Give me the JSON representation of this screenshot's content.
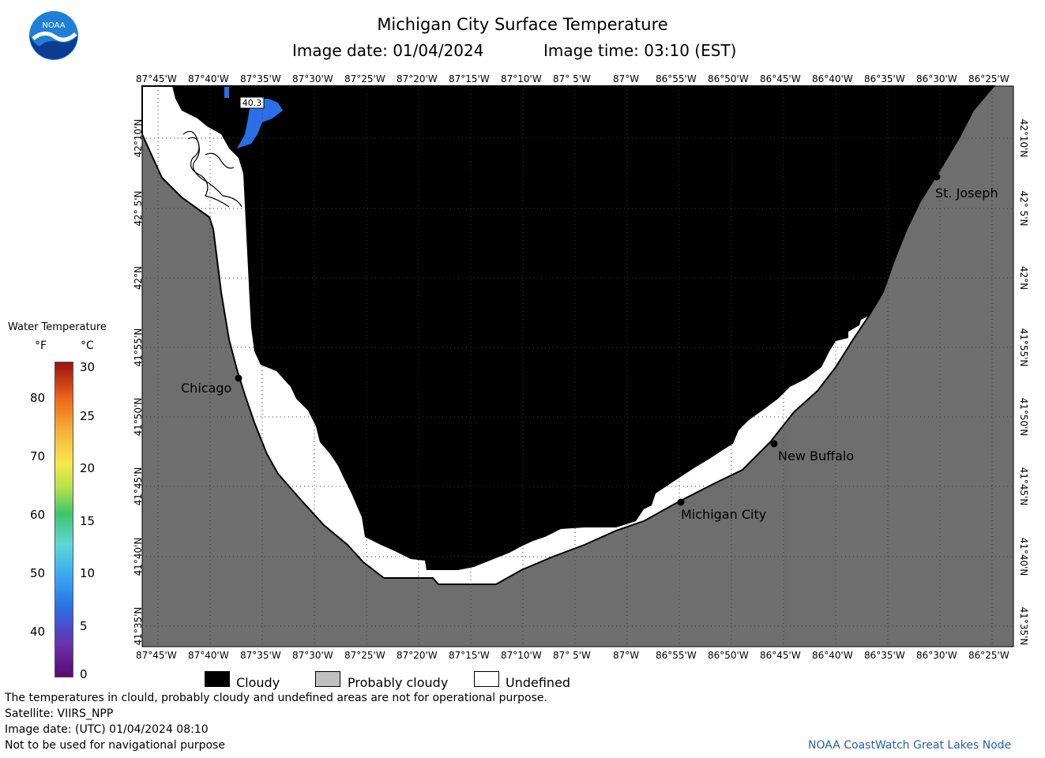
{
  "title": "Michigan City Surface Temperature",
  "image_date_line": "Image date: 01/04/2024",
  "image_time_line": "Image time: 03:10 (EST)",
  "logo_text": "NOAA",
  "lon_labels": [
    "87°45'W",
    "87°40'W",
    "87°35'W",
    "87°30'W",
    "87°25'W",
    "87°20'W",
    "87°15'W",
    "87°10'W",
    "87° 5'W",
    "87°W",
    "86°55'W",
    "86°50'W",
    "86°45'W",
    "86°40'W",
    "86°35'W",
    "86°30'W",
    "86°25'W"
  ],
  "lat_labels": [
    "42°10'N",
    "42° 5'N",
    "42°N",
    "41°55'N",
    "41°50'N",
    "41°45'N",
    "41°40'N",
    "41°35'N"
  ],
  "cities": [
    {
      "name": "Chicago"
    },
    {
      "name": "St. Joseph"
    },
    {
      "name": "New Buffalo"
    },
    {
      "name": "Michigan City"
    }
  ],
  "temp_label": "40.3",
  "colorbar": {
    "title": "Water Temperature",
    "unit_f": "°F",
    "unit_c": "°C",
    "f_ticks": [
      "80",
      "70",
      "60",
      "50",
      "40"
    ],
    "c_ticks": [
      "30",
      "25",
      "20",
      "15",
      "10",
      "5",
      "0"
    ]
  },
  "legend": {
    "cloudy": "Cloudy",
    "probably_cloudy": "Probably cloudy",
    "undefined": "Undefined"
  },
  "colors": {
    "land": "#6e6e6e",
    "cloudy": "#000000",
    "undefined": "#ffffff",
    "probably_cloudy": "#c0c0c0",
    "water_5c": "#2a6fe6",
    "credit": "#2a5db0"
  },
  "footer": {
    "note": "The temperatures in clould, probably cloudy and undefined areas are not for operational purpose.",
    "satellite": "Satellite: VIIRS_NPP",
    "utc_date": "Image date: (UTC) 01/04/2024  08:10",
    "nav_warning": "Not to be used for navigational purpose",
    "credit": "NOAA CoastWatch Great Lakes Node"
  }
}
